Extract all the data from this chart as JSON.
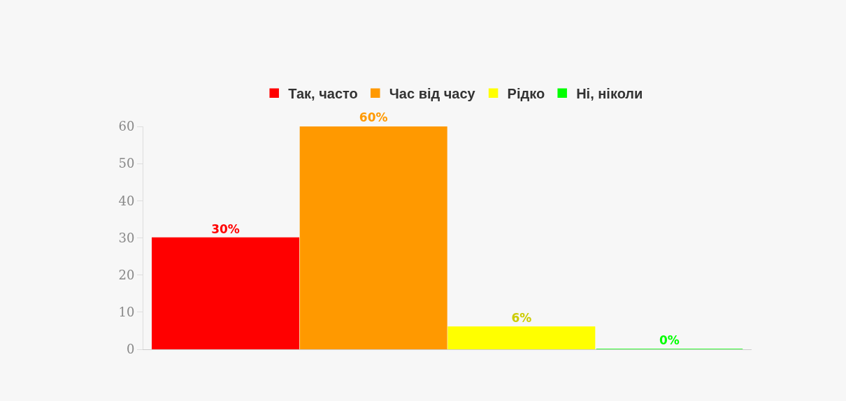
{
  "chart_data": {
    "type": "bar",
    "categories": [
      null
    ],
    "series": [
      {
        "name": "Так, часто",
        "color": "#ff0000",
        "values": [
          30
        ],
        "value_labels": [
          "30%"
        ]
      },
      {
        "name": "Час від часу",
        "color": "#ff9900",
        "values": [
          60
        ],
        "value_labels": [
          "60%"
        ]
      },
      {
        "name": "Рідко",
        "color": "#ffff00",
        "values": [
          6
        ],
        "value_labels": [
          "6%"
        ]
      },
      {
        "name": "Ні, ніколи",
        "color": "#00ff00",
        "values": [
          0
        ],
        "value_labels": [
          "0%"
        ]
      }
    ],
    "ylim": [
      0,
      60
    ],
    "yticks": [
      0,
      10,
      20,
      30,
      40,
      50,
      60
    ],
    "legend": "top"
  }
}
